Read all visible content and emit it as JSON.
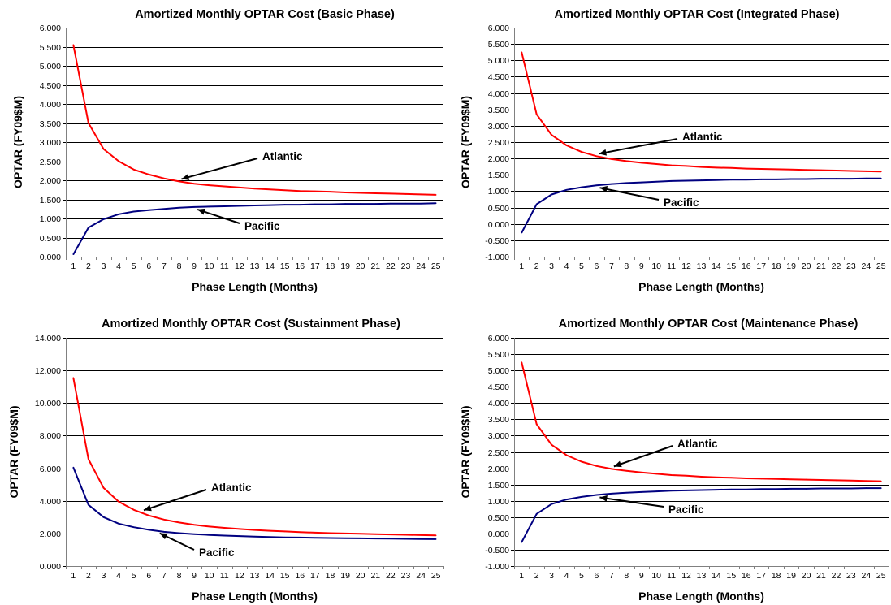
{
  "chart_data": [
    {
      "type": "line",
      "title": "Amortized Monthly OPTAR Cost (Basic Phase)",
      "xlabel": "Phase Length (Months)",
      "ylabel": "OPTAR (FY09$M)",
      "ylim": [
        0,
        6
      ],
      "ytick_step": 0.5,
      "grid": true,
      "x": [
        1,
        2,
        3,
        4,
        5,
        6,
        7,
        8,
        9,
        10,
        11,
        12,
        13,
        14,
        15,
        16,
        17,
        18,
        19,
        20,
        21,
        22,
        23,
        24,
        25
      ],
      "series": [
        {
          "name": "Atlantic",
          "color": "#ff0000",
          "values": [
            5.55,
            3.5,
            2.82,
            2.5,
            2.28,
            2.15,
            2.05,
            1.97,
            1.91,
            1.87,
            1.84,
            1.81,
            1.78,
            1.76,
            1.74,
            1.72,
            1.71,
            1.7,
            1.68,
            1.67,
            1.66,
            1.65,
            1.64,
            1.63,
            1.62
          ]
        },
        {
          "name": "Pacific",
          "color": "#000080",
          "values": [
            0.06,
            0.76,
            0.98,
            1.11,
            1.18,
            1.22,
            1.25,
            1.28,
            1.3,
            1.31,
            1.32,
            1.33,
            1.34,
            1.35,
            1.36,
            1.36,
            1.37,
            1.37,
            1.38,
            1.38,
            1.38,
            1.39,
            1.39,
            1.39,
            1.4
          ]
        }
      ],
      "annotations": [
        {
          "text": "Atlantic",
          "series": "Atlantic",
          "point_x": 8
        },
        {
          "text": "Pacific",
          "series": "Pacific",
          "point_x": 9
        }
      ]
    },
    {
      "type": "line",
      "title": "Amortized Monthly OPTAR Cost (Integrated Phase)",
      "xlabel": "Phase Length (Months)",
      "ylabel": "OPTAR (FY09$M)",
      "ylim": [
        -1,
        6
      ],
      "ytick_step": 0.5,
      "grid": true,
      "x": [
        1,
        2,
        3,
        4,
        5,
        6,
        7,
        8,
        9,
        10,
        11,
        12,
        13,
        14,
        15,
        16,
        17,
        18,
        19,
        20,
        21,
        22,
        23,
        24,
        25
      ],
      "series": [
        {
          "name": "Atlantic",
          "color": "#ff0000",
          "values": [
            5.25,
            3.35,
            2.72,
            2.4,
            2.2,
            2.07,
            1.98,
            1.92,
            1.87,
            1.83,
            1.79,
            1.77,
            1.74,
            1.72,
            1.71,
            1.69,
            1.68,
            1.67,
            1.66,
            1.65,
            1.64,
            1.63,
            1.62,
            1.61,
            1.6
          ]
        },
        {
          "name": "Pacific",
          "color": "#000080",
          "values": [
            -0.27,
            0.6,
            0.9,
            1.04,
            1.12,
            1.18,
            1.22,
            1.25,
            1.27,
            1.29,
            1.31,
            1.32,
            1.33,
            1.34,
            1.35,
            1.35,
            1.36,
            1.36,
            1.37,
            1.37,
            1.38,
            1.38,
            1.38,
            1.39,
            1.39
          ]
        }
      ],
      "annotations": [
        {
          "text": "Atlantic",
          "series": "Atlantic",
          "point_x": 6
        },
        {
          "text": "Pacific",
          "series": "Pacific",
          "point_x": 6
        }
      ]
    },
    {
      "type": "line",
      "title": "Amortized Monthly OPTAR Cost (Sustainment Phase)",
      "xlabel": "Phase Length (Months)",
      "ylabel": "OPTAR (FY09$M)",
      "ylim": [
        0,
        14
      ],
      "ytick_step": 2,
      "grid": true,
      "x": [
        1,
        2,
        3,
        4,
        5,
        6,
        7,
        8,
        9,
        10,
        11,
        12,
        13,
        14,
        15,
        16,
        17,
        18,
        19,
        20,
        21,
        22,
        23,
        24,
        25
      ],
      "series": [
        {
          "name": "Atlantic",
          "color": "#ff0000",
          "values": [
            11.55,
            6.55,
            4.8,
            3.95,
            3.45,
            3.1,
            2.85,
            2.67,
            2.53,
            2.42,
            2.34,
            2.27,
            2.21,
            2.16,
            2.12,
            2.08,
            2.05,
            2.02,
            2.0,
            1.98,
            1.96,
            1.94,
            1.92,
            1.9,
            1.88
          ]
        },
        {
          "name": "Pacific",
          "color": "#000080",
          "values": [
            6.05,
            3.75,
            3.0,
            2.6,
            2.38,
            2.22,
            2.1,
            2.02,
            1.96,
            1.91,
            1.87,
            1.84,
            1.81,
            1.78,
            1.76,
            1.75,
            1.73,
            1.72,
            1.71,
            1.7,
            1.69,
            1.68,
            1.67,
            1.66,
            1.65
          ]
        }
      ],
      "annotations": [
        {
          "text": "Atlantic",
          "series": "Atlantic",
          "point_x": 5.5
        },
        {
          "text": "Pacific",
          "series": "Pacific",
          "point_x": 6.5
        }
      ]
    },
    {
      "type": "line",
      "title": "Amortized Monthly OPTAR Cost (Maintenance Phase)",
      "xlabel": "Phase Length (Months)",
      "ylabel": "OPTAR (FY09$M)",
      "ylim": [
        -1,
        6
      ],
      "ytick_step": 0.5,
      "grid": true,
      "x": [
        1,
        2,
        3,
        4,
        5,
        6,
        7,
        8,
        9,
        10,
        11,
        12,
        13,
        14,
        15,
        16,
        17,
        18,
        19,
        20,
        21,
        22,
        23,
        24,
        25
      ],
      "series": [
        {
          "name": "Atlantic",
          "color": "#ff0000",
          "values": [
            5.25,
            3.35,
            2.72,
            2.4,
            2.2,
            2.07,
            1.98,
            1.92,
            1.87,
            1.83,
            1.79,
            1.77,
            1.74,
            1.72,
            1.71,
            1.69,
            1.68,
            1.67,
            1.66,
            1.65,
            1.64,
            1.63,
            1.62,
            1.61,
            1.6
          ]
        },
        {
          "name": "Pacific",
          "color": "#000080",
          "values": [
            -0.27,
            0.6,
            0.9,
            1.04,
            1.12,
            1.18,
            1.22,
            1.25,
            1.27,
            1.29,
            1.31,
            1.32,
            1.33,
            1.34,
            1.35,
            1.35,
            1.36,
            1.36,
            1.37,
            1.37,
            1.38,
            1.38,
            1.38,
            1.39,
            1.39
          ]
        }
      ],
      "annotations": [
        {
          "text": "Atlantic",
          "series": "Atlantic",
          "point_x": 7
        },
        {
          "text": "Pacific",
          "series": "Pacific",
          "point_x": 6
        }
      ]
    }
  ]
}
